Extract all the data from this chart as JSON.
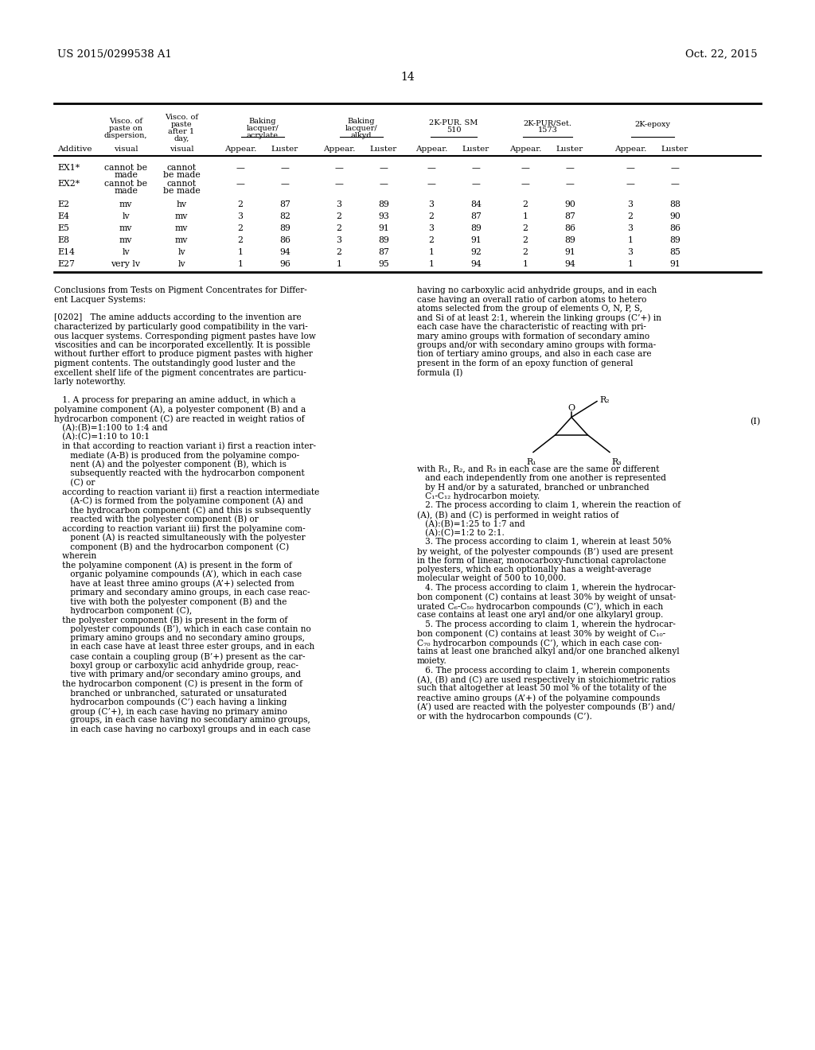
{
  "patent_left": "US 2015/0299538 A1",
  "patent_right": "Oct. 22, 2015",
  "page_number": "14",
  "bg_color": "#ffffff",
  "table_rows": [
    [
      "EX1*",
      "cannot be\nmade",
      "cannot\nbe made",
      "—",
      "—",
      "—",
      "—",
      "—",
      "—",
      "—",
      "—",
      "—",
      "—"
    ],
    [
      "EX2*",
      "cannot be\nmade",
      "cannot\nbe made",
      "—",
      "—",
      "—",
      "—",
      "—",
      "—",
      "—",
      "—",
      "—",
      "—"
    ],
    [
      "E2",
      "mv",
      "hv",
      "2",
      "87",
      "3",
      "89",
      "3",
      "84",
      "2",
      "90",
      "3",
      "88"
    ],
    [
      "E4",
      "lv",
      "mv",
      "3",
      "82",
      "2",
      "93",
      "2",
      "87",
      "1",
      "87",
      "2",
      "90"
    ],
    [
      "E5",
      "mv",
      "mv",
      "2",
      "89",
      "2",
      "91",
      "3",
      "89",
      "2",
      "86",
      "3",
      "86"
    ],
    [
      "E8",
      "mv",
      "mv",
      "2",
      "86",
      "3",
      "89",
      "2",
      "91",
      "2",
      "89",
      "1",
      "89"
    ],
    [
      "E14",
      "lv",
      "lv",
      "1",
      "94",
      "2",
      "87",
      "1",
      "92",
      "2",
      "91",
      "3",
      "85"
    ],
    [
      "E27",
      "very lv",
      "lv",
      "1",
      "96",
      "1",
      "95",
      "1",
      "94",
      "1",
      "94",
      "1",
      "91"
    ]
  ],
  "left_lines": [
    [
      "Conclusions from Tests on Pigment Concentrates for Differ-",
      false
    ],
    [
      "ent Lacquer Systems:",
      false
    ],
    [
      "",
      false
    ],
    [
      "[0202]   The amine adducts according to the invention are",
      false
    ],
    [
      "characterized by particularly good compatibility in the vari-",
      false
    ],
    [
      "ous lacquer systems. Corresponding pigment pastes have low",
      false
    ],
    [
      "viscosities and can be incorporated excellently. It is possible",
      false
    ],
    [
      "without further effort to produce pigment pastes with higher",
      false
    ],
    [
      "pigment contents. The outstandingly good luster and the",
      false
    ],
    [
      "excellent shelf life of the pigment concentrates are particu-",
      false
    ],
    [
      "larly noteworthy.",
      false
    ],
    [
      "",
      false
    ],
    [
      "   1. A process for preparing an amine adduct, in which a",
      false
    ],
    [
      "polyamine component (A), a polyester component (B) and a",
      false
    ],
    [
      "hydrocarbon component (C) are reacted in weight ratios of",
      false
    ],
    [
      "   (A):(B)=1:100 to 1:4 and",
      false
    ],
    [
      "   (A):(C)=1:10 to 10:1",
      false
    ],
    [
      "   in that according to reaction variant i) first a reaction inter-",
      false
    ],
    [
      "      mediate (A-B) is produced from the polyamine compo-",
      false
    ],
    [
      "      nent (A) and the polyester component (B), which is",
      false
    ],
    [
      "      subsequently reacted with the hydrocarbon component",
      false
    ],
    [
      "      (C) or",
      false
    ],
    [
      "   according to reaction variant ii) first a reaction intermediate",
      false
    ],
    [
      "      (A-C) is formed from the polyamine component (A) and",
      false
    ],
    [
      "      the hydrocarbon component (C) and this is subsequently",
      false
    ],
    [
      "      reacted with the polyester component (B) or",
      false
    ],
    [
      "   according to reaction variant iii) first the polyamine com-",
      false
    ],
    [
      "      ponent (A) is reacted simultaneously with the polyester",
      false
    ],
    [
      "      component (B) and the hydrocarbon component (C)",
      false
    ],
    [
      "   wherein",
      false
    ],
    [
      "   the polyamine component (A) is present in the form of",
      false
    ],
    [
      "      organic polyamine compounds (A’), which in each case",
      false
    ],
    [
      "      have at least three amino groups (A’+) selected from",
      false
    ],
    [
      "      primary and secondary amino groups, in each case reac-",
      false
    ],
    [
      "      tive with both the polyester component (B) and the",
      false
    ],
    [
      "      hydrocarbon component (C),",
      false
    ],
    [
      "   the polyester component (B) is present in the form of",
      false
    ],
    [
      "      polyester compounds (B’), which in each case contain no",
      false
    ],
    [
      "      primary amino groups and no secondary amino groups,",
      false
    ],
    [
      "      in each case have at least three ester groups, and in each",
      false
    ],
    [
      "      case contain a coupling group (B’+) present as the car-",
      false
    ],
    [
      "      boxyl group or carboxylic acid anhydride group, reac-",
      false
    ],
    [
      "      tive with primary and/or secondary amino groups, and",
      false
    ],
    [
      "   the hydrocarbon component (C) is present in the form of",
      false
    ],
    [
      "      branched or unbranched, saturated or unsaturated",
      false
    ],
    [
      "      hydrocarbon compounds (C’) each having a linking",
      false
    ],
    [
      "      group (C’+), in each case having no primary amino",
      false
    ],
    [
      "      groups, in each case having no secondary amino groups,",
      false
    ],
    [
      "      in each case having no carboxyl groups and in each case",
      false
    ]
  ],
  "right_lines_top": [
    "having no carboxylic acid anhydride groups, and in each",
    "case having an overall ratio of carbon atoms to hetero",
    "atoms selected from the group of elements O, N, P, S,",
    "and Si of at least 2:1, wherein the linking groups (C’+) in",
    "each case have the characteristic of reacting with pri-",
    "mary amino groups with formation of secondary amino",
    "groups and/or with secondary amino groups with forma-",
    "tion of tertiary amino groups, and also in each case are",
    "present in the form of an epoxy function of general",
    "formula (I)"
  ],
  "right_lines_bottom": [
    "with R₁, R₂, and R₃ in each case are the same or different",
    "   and each independently from one another is represented",
    "   by H and/or by a saturated, branched or unbranched",
    "   C₁-C₁₂ hydrocarbon moiety.",
    "   2. The process according to claim 1, wherein the reaction of",
    "(A), (B) and (C) is performed in weight ratios of",
    "   (A):(B)=1:25 to 1:7 and",
    "   (A):(C)=1:2 to 2:1.",
    "   3. The process according to claim 1, wherein at least 50%",
    "by weight, of the polyester compounds (B’) used are present",
    "in the form of linear, monocarboxy-functional caprolactone",
    "polyesters, which each optionally has a weight-average",
    "molecular weight of 500 to 10,000.",
    "   4. The process according to claim 1, wherein the hydrocar-",
    "bon component (C) contains at least 30% by weight of unsat-",
    "urated C₆-C₅₀ hydrocarbon compounds (C’), which in each",
    "case contains at least one aryl and/or one alkylaryl group.",
    "   5. The process according to claim 1, wherein the hydrocar-",
    "bon component (C) contains at least 30% by weight of C₁₀-",
    "C₇₀ hydrocarbon compounds (C’), which in each case con-",
    "tains at least one branched alkyl and/or one branched alkenyl",
    "moiety.",
    "   6. The process according to claim 1, wherein components",
    "(A), (B) and (C) are used respectively in stoichiometric ratios",
    "such that altogether at least 50 mol % of the totality of the",
    "reactive amino groups (A’+) of the polyamine compounds",
    "(A’) used are reacted with the polyester compounds (B’) and/",
    "or with the hydrocarbon compounds (C’)."
  ]
}
